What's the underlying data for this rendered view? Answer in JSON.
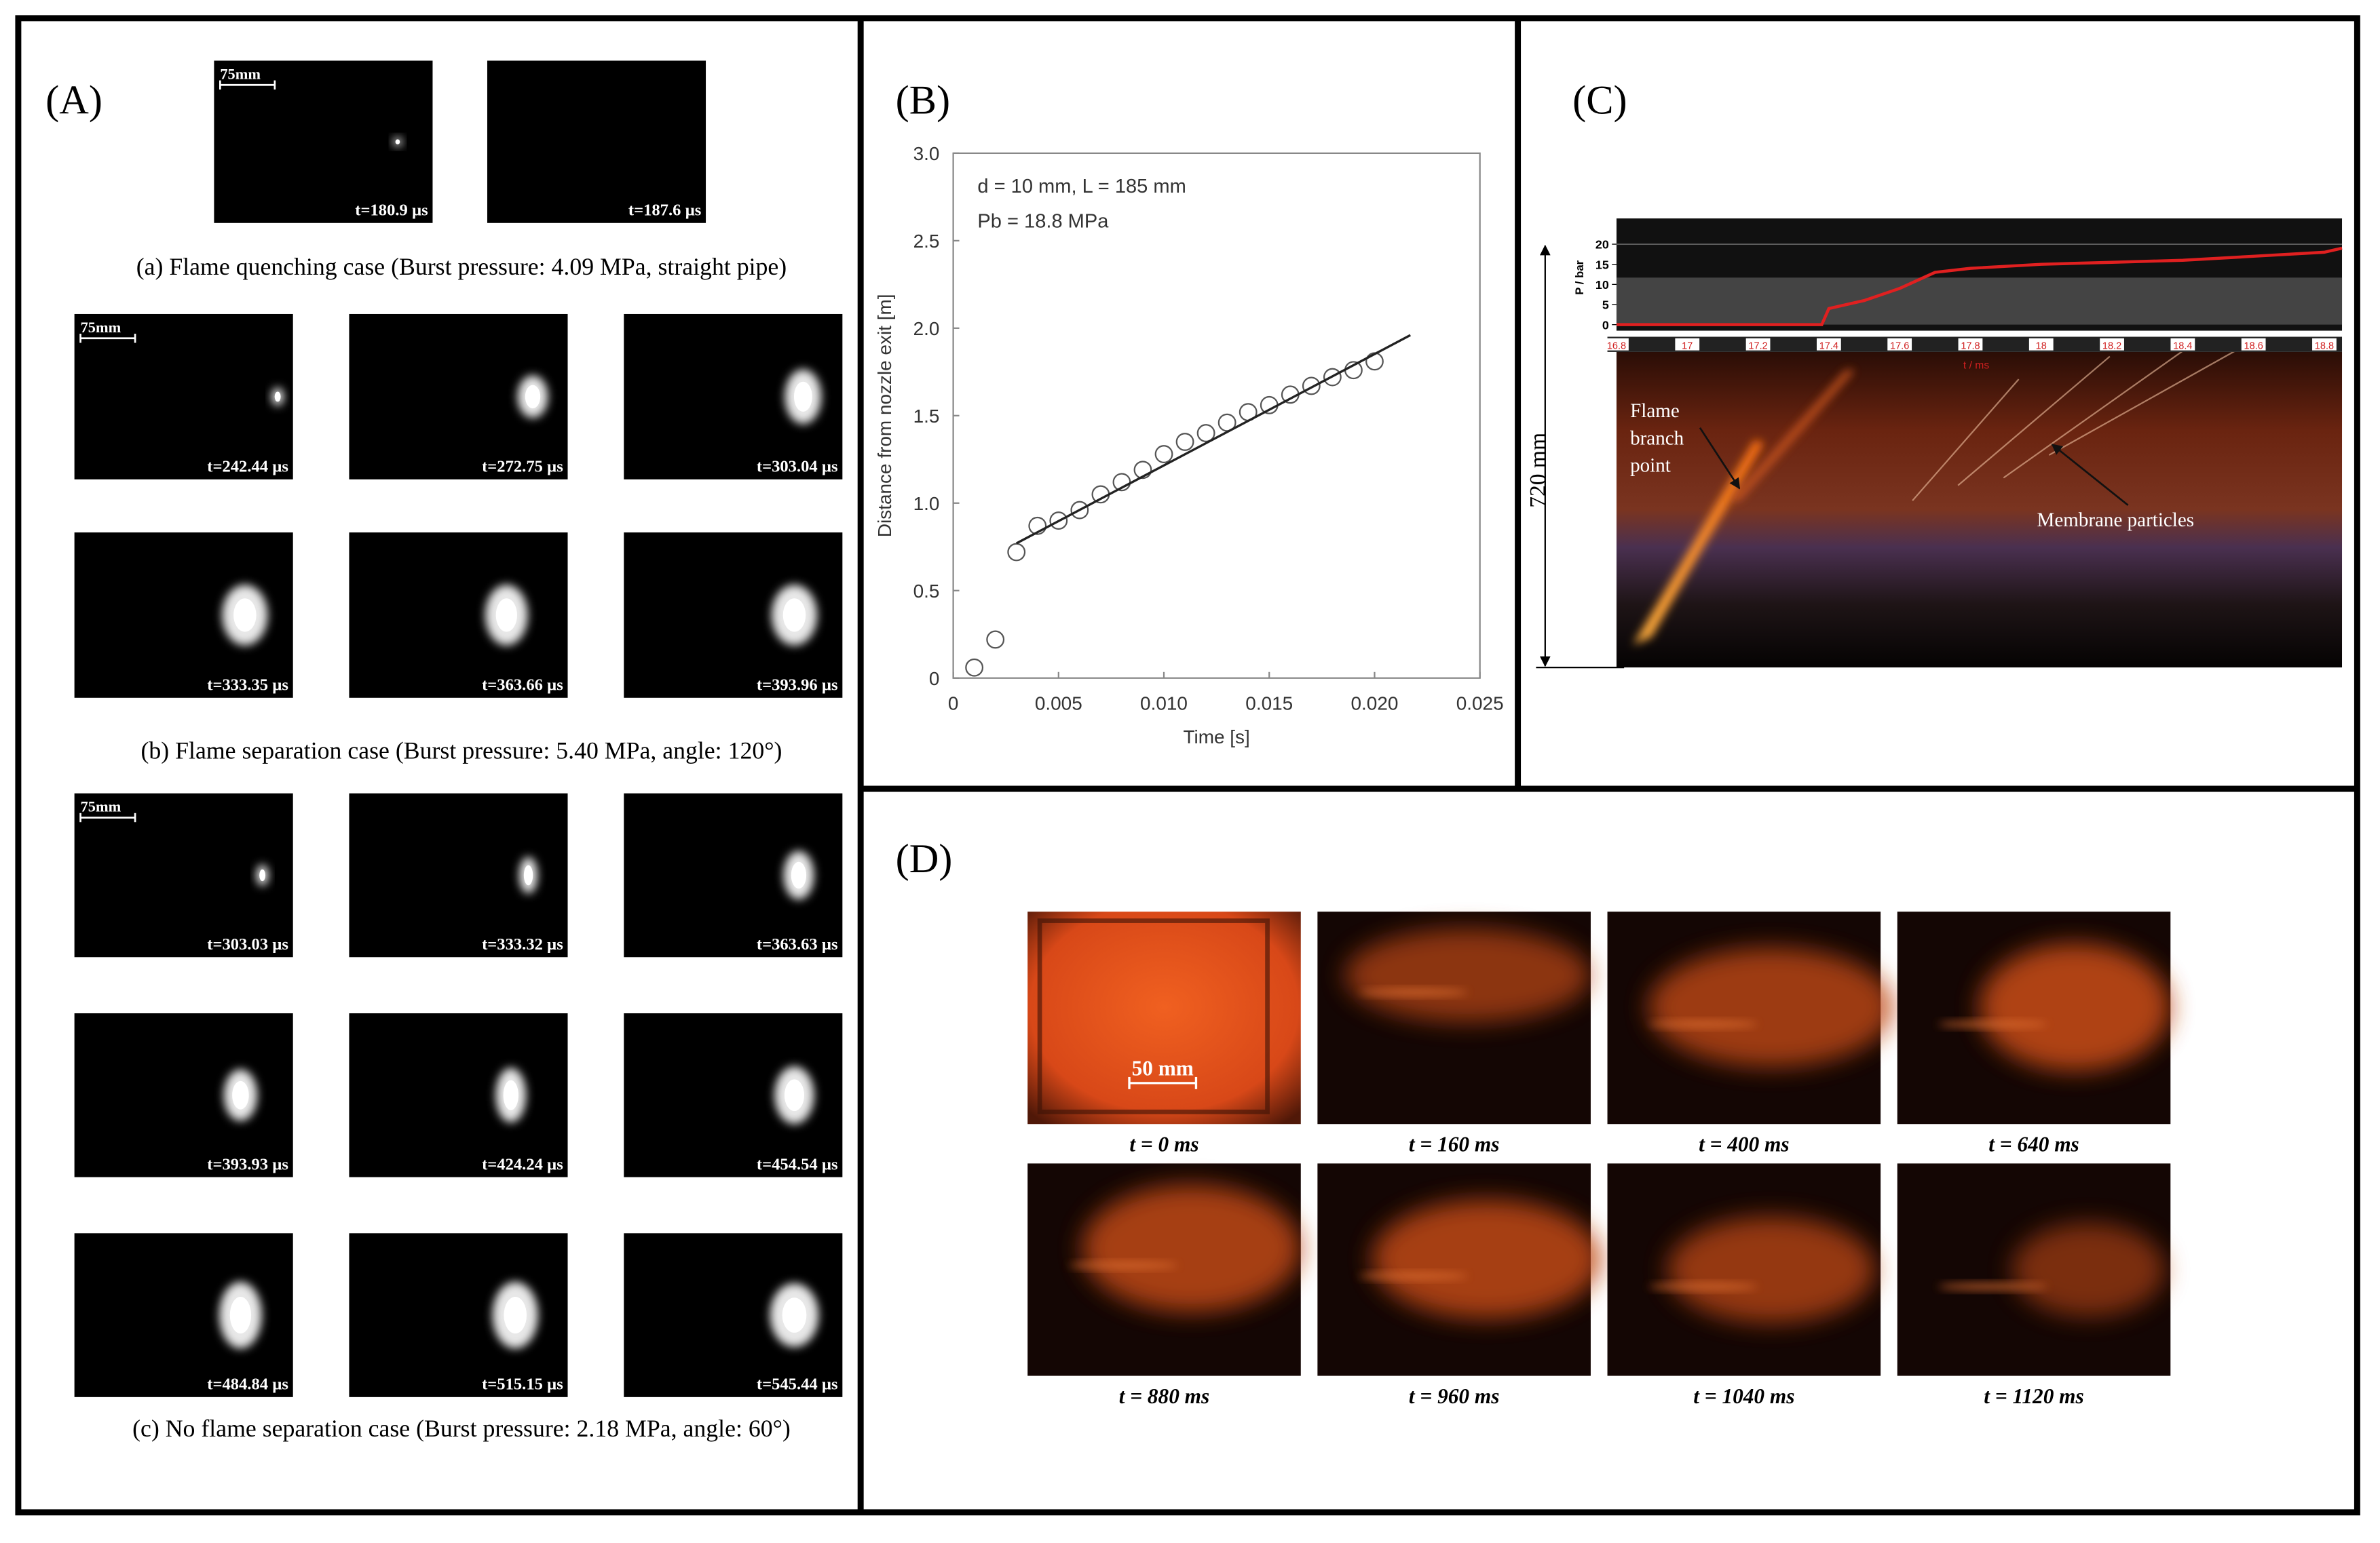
{
  "panel_a": {
    "label": "(A)",
    "groups": [
      {
        "caption": "(a) Flame quenching case (Burst pressure: 4.09 MPa, straight pipe)",
        "scale_bar": "75mm",
        "frames": [
          "t=180.9 µs",
          "t=187.6 µs"
        ]
      },
      {
        "caption": "(b) Flame separation case (Burst pressure: 5.40 MPa, angle: 120°)",
        "scale_bar": "75mm",
        "frames": [
          "t=242.44 µs",
          "t=272.75 µs",
          "t=303.04 µs",
          "t=333.35 µs",
          "t=363.66 µs",
          "t=393.96 µs"
        ]
      },
      {
        "caption": "(c) No flame separation case (Burst pressure: 2.18 MPa, angle: 60°)",
        "scale_bar": "75mm",
        "frames": [
          "t=303.03 µs",
          "t=333.32 µs",
          "t=363.63 µs",
          "t=393.93 µs",
          "t=424.24 µs",
          "t=454.54 µs",
          "t=484.84 µs",
          "t=515.15 µs",
          "t=545.44 µs"
        ]
      }
    ]
  },
  "panel_b": {
    "label": "(B)",
    "chart_data": {
      "type": "scatter",
      "x_label": "Time [s]",
      "y_label": "Distance from nozzle exit [m]",
      "annotations": [
        "d = 10 mm, L = 185 mm",
        "Pb = 18.8 MPa"
      ],
      "series": [
        {
          "type": "scatter",
          "color": "#555555",
          "x": [
            0.001,
            0.002,
            0.003,
            0.004,
            0.005,
            0.006,
            0.007,
            0.008,
            0.009,
            0.01,
            0.011,
            0.012,
            0.013,
            0.014,
            0.015,
            0.016,
            0.017,
            0.018,
            0.019,
            0.02
          ],
          "values": [
            0.06,
            0.22,
            0.72,
            0.87,
            0.9,
            0.96,
            1.05,
            1.12,
            1.19,
            1.28,
            1.35,
            1.4,
            1.46,
            1.52,
            1.56,
            1.62,
            1.67,
            1.72,
            1.76,
            1.81
          ]
        },
        {
          "type": "line",
          "color": "#222222",
          "x": [
            0.003,
            0.0217
          ],
          "values": [
            0.77,
            1.96
          ]
        }
      ],
      "xlim": [
        0,
        0.025
      ],
      "ylim": [
        0,
        3
      ],
      "xticks": [
        0,
        0.005,
        {
          "value": 0.01,
          "label": "0.010"
        },
        0.015,
        {
          "value": 0.02,
          "label": "0.020"
        },
        0.025
      ],
      "yticks": [
        0,
        0.5,
        {
          "value": 1,
          "label": "1.0"
        },
        1.5,
        {
          "value": 2,
          "label": "2.0"
        },
        2.5,
        {
          "value": 3,
          "label": "3.0"
        }
      ]
    }
  },
  "panel_c": {
    "label": "(C)",
    "branch_label": [
      "Flame",
      "branch",
      "point"
    ],
    "particles_label": "Membrane particles",
    "height_label": "720 mm",
    "chart_data": {
      "type": "line",
      "y_label": "P / bar",
      "x_label": "t / ms",
      "color": "#e02020",
      "x": [
        16.8,
        17.0,
        17.2,
        17.38,
        17.4,
        17.5,
        17.6,
        17.7,
        17.8,
        18.0,
        18.2,
        18.4,
        18.6,
        18.8,
        18.85
      ],
      "values": [
        0,
        0,
        0,
        0,
        4,
        6,
        9,
        13,
        14,
        15,
        15.5,
        16,
        17,
        18,
        19
      ],
      "xlim": [
        16.8,
        18.85
      ],
      "ylim": [
        -1.5,
        26.4
      ],
      "xticks": [
        16.8,
        17,
        17.2,
        17.4,
        17.6,
        17.8,
        18,
        18.2,
        18.4,
        18.6,
        18.8
      ],
      "yticks": [
        0,
        5,
        10,
        15,
        20
      ]
    }
  },
  "panel_d": {
    "label": "(D)",
    "scale_bar": "50 mm",
    "frames": [
      "t = 0 ms",
      "t = 160 ms",
      "t = 400 ms",
      "t = 640 ms",
      "t = 880 ms",
      "t = 960 ms",
      "t = 1040 ms",
      "t = 1120 ms"
    ]
  }
}
